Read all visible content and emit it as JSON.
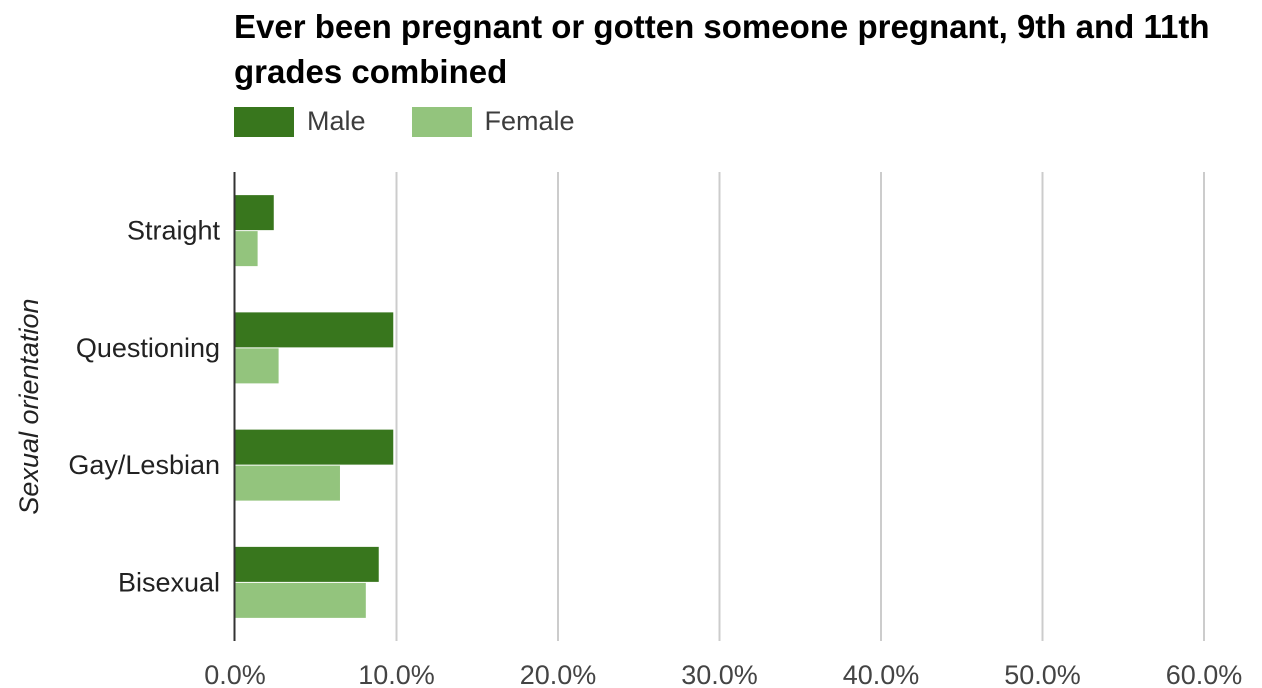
{
  "chart_data": {
    "type": "bar",
    "orientation": "horizontal",
    "title": "Ever been pregnant or gotten someone pregnant, 9th and 11th grades combined",
    "ylabel": "Sexual orientation",
    "xlabel": "",
    "categories": [
      "Straight",
      "Questioning",
      "Gay/Lesbian",
      "Bisexual"
    ],
    "series": [
      {
        "name": "Male",
        "color": "#38761d",
        "values": [
          2.4,
          9.8,
          9.8,
          8.9
        ]
      },
      {
        "name": "Female",
        "color": "#93c47d",
        "values": [
          1.4,
          2.7,
          6.5,
          8.1
        ]
      }
    ],
    "xlim": [
      0,
      60
    ],
    "x_ticks": [
      "0.0%",
      "10.0%",
      "20.0%",
      "30.0%",
      "40.0%",
      "50.0%",
      "60.0%"
    ],
    "value_unit": "percent",
    "grid": "vertical",
    "legend_position": "top-left"
  }
}
